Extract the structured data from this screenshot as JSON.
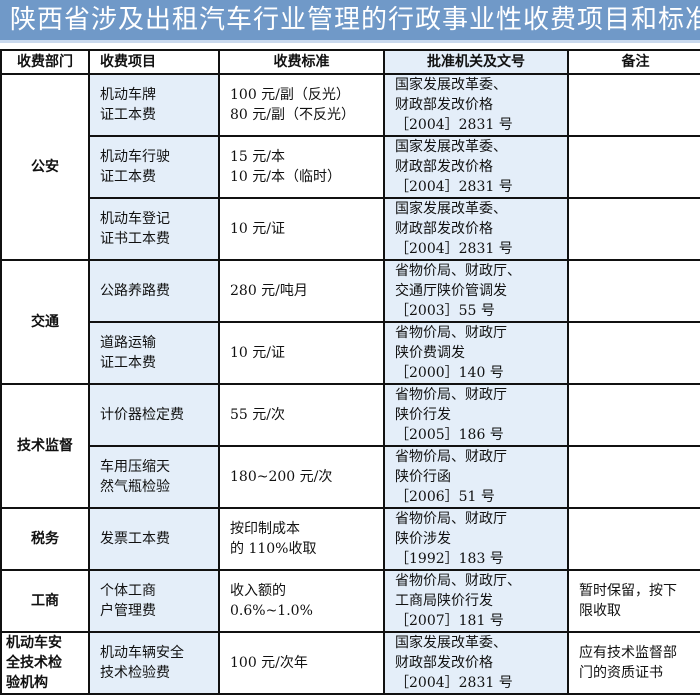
{
  "title": "陕西省涉及出租汽车行业管理的行政事业性收费项目和标准",
  "headers": [
    "收费部门",
    "收费项目",
    "收费标准",
    "批准机关及文号",
    "备注"
  ],
  "groups": [
    {
      "dept": "公安",
      "rows": [
        {
          "item": "机动车牌\n证工本费",
          "standard": "100 元/副（反光）\n80 元/副（不反光）",
          "approval": "国家发展改革委、\n财政部发改价格\n［2004］2831 号",
          "note": ""
        },
        {
          "item": "机动车行驶\n证工本费",
          "standard": "15 元/本\n10 元/本（临时）",
          "approval": "国家发展改革委、\n财政部发改价格\n［2004］2831 号",
          "note": ""
        },
        {
          "item": "机动车登记\n证书工本费",
          "standard": "10 元/证",
          "approval": "国家发展改革委、\n财政部发改价格\n［2004］2831 号",
          "note": ""
        }
      ]
    },
    {
      "dept": "交通",
      "rows": [
        {
          "item": "公路养路费",
          "standard": "280 元/吨月",
          "approval": "省物价局、财政厅、\n交通厅陕价管调发\n［2003］55 号",
          "note": ""
        },
        {
          "item": "道路运输\n证工本费",
          "standard": "10 元/证",
          "approval": "省物价局、财政厅\n陕价费调发\n［2000］140 号",
          "note": ""
        }
      ]
    },
    {
      "dept": "技术监督",
      "rows": [
        {
          "item": "计价器检定费",
          "standard": "55 元/次",
          "approval": "省物价局、财政厅\n陕价行发\n［2005］186 号",
          "note": ""
        },
        {
          "item": "车用压缩天\n然气瓶检验",
          "standard": "180~200 元/次",
          "approval": "省物价局、财政厅\n陕价行函\n［2006］51 号",
          "note": ""
        }
      ]
    },
    {
      "dept": "税务",
      "rows": [
        {
          "item": "发票工本费",
          "standard": "按印制成本\n的 110%收取",
          "approval": "省物价局、财政厅\n陕价涉发\n［1992］183 号",
          "note": ""
        }
      ]
    },
    {
      "dept": "工商",
      "rows": [
        {
          "item": "个体工商\n户管理费",
          "standard": "收入额的\n0.6%~1.0%",
          "approval": "省物价局、财政厅、\n工商局陕价行发\n［2007］181 号",
          "note": "暂时保留，按下\n限收取"
        }
      ]
    },
    {
      "dept": "机动车安\n全技术检\n验机构",
      "rows": [
        {
          "item": "机动车辆安全\n技术检验费",
          "standard": "100 元/次年",
          "approval": "国家发展改革委、\n财政部发改价格\n［2004］2831 号",
          "note": "应有技术监督部\n门的资质证书"
        }
      ]
    }
  ]
}
